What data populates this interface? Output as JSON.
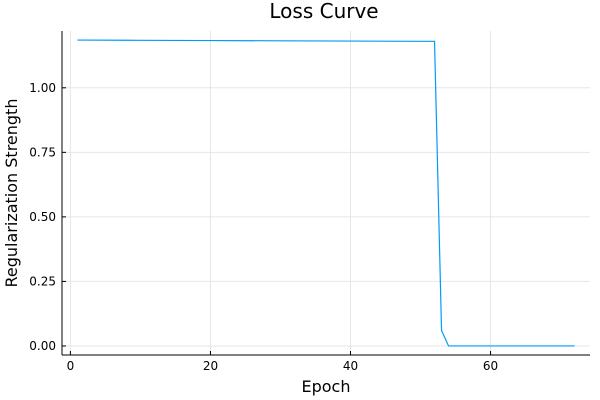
{
  "chart_data": {
    "type": "line",
    "title": "Loss Curve",
    "xlabel": "Epoch",
    "ylabel": "Regularization Strength",
    "xlim": [
      -1.2,
      74.2
    ],
    "ylim": [
      -0.035,
      1.22
    ],
    "x_ticks": [
      0,
      20,
      40,
      60
    ],
    "y_ticks": [
      0.0,
      0.25,
      0.5,
      0.75,
      1.0
    ],
    "x_tick_labels": [
      "0",
      "20",
      "40",
      "60"
    ],
    "y_tick_labels": [
      "0.00",
      "0.25",
      "0.50",
      "0.75",
      "1.00"
    ],
    "grid": true,
    "legend": false,
    "series": [
      {
        "color": "#009AFA",
        "x": [
          1,
          10,
          20,
          30,
          40,
          50,
          52,
          53,
          54,
          55,
          60,
          65,
          70,
          72
        ],
        "y": [
          1.185,
          1.184,
          1.183,
          1.182,
          1.181,
          1.18,
          1.18,
          0.06,
          0.0,
          0.0,
          0.0,
          0.0,
          0.0,
          0.0
        ]
      }
    ]
  }
}
